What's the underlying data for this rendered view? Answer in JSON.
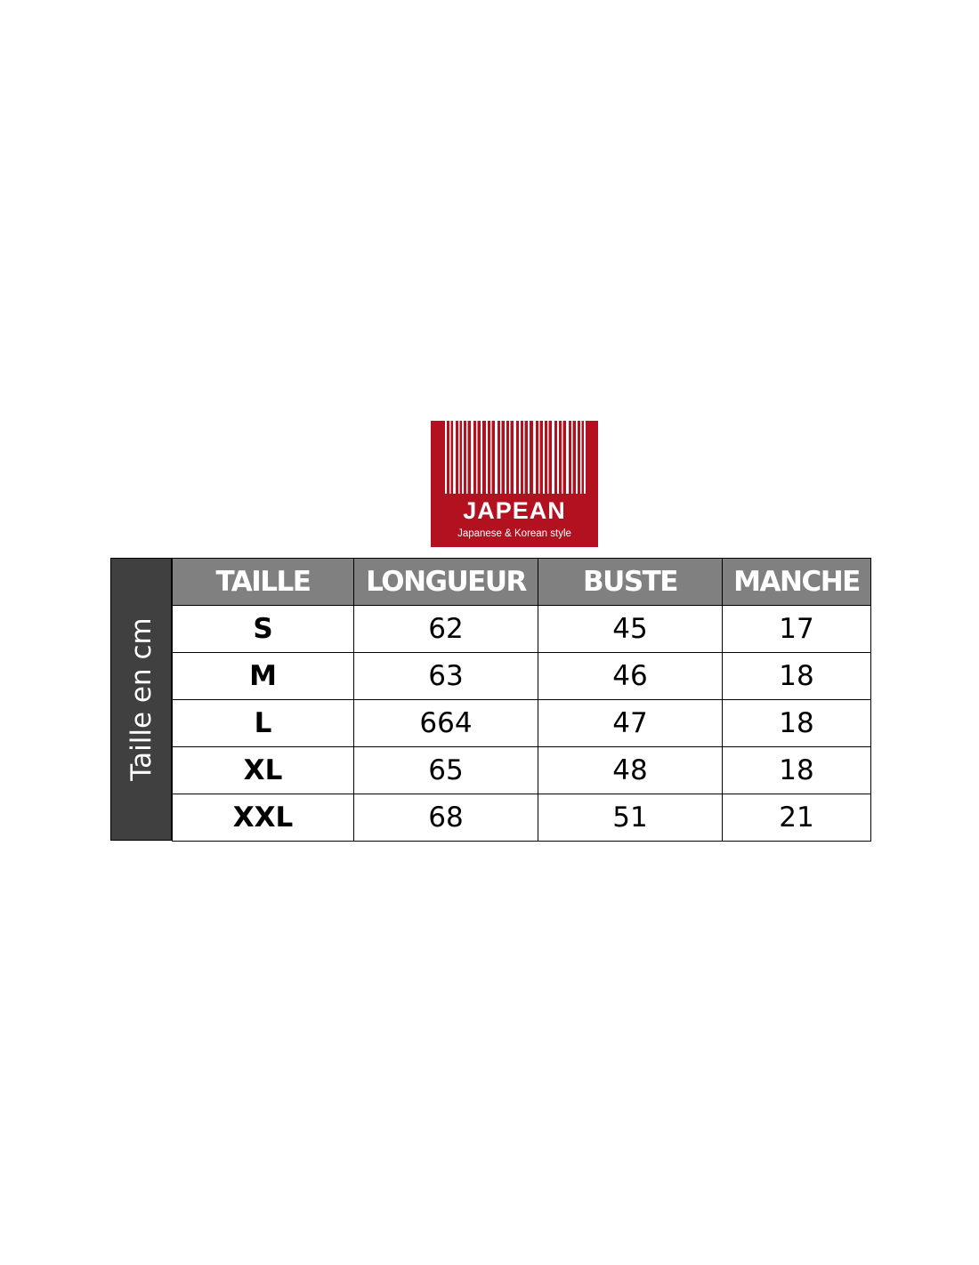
{
  "logo": {
    "brand": "JAPEAN",
    "tagline": "Japanese & Korean style",
    "color": "#b31020"
  },
  "side_label": "Taille en cm",
  "table": {
    "headers": [
      "TAILLE",
      "LONGUEUR",
      "BUSTE",
      "MANCHE"
    ],
    "rows": [
      [
        "S",
        "62",
        "45",
        "17"
      ],
      [
        "M",
        "63",
        "46",
        "18"
      ],
      [
        "L",
        "664",
        "47",
        "18"
      ],
      [
        "XL",
        "65",
        "48",
        "18"
      ],
      [
        "XXL",
        "68",
        "51",
        "21"
      ]
    ]
  }
}
